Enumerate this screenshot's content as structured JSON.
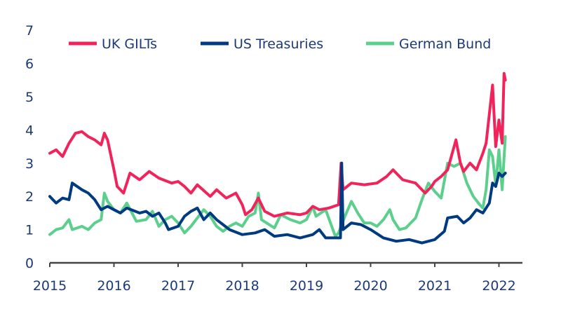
{
  "chart_data": {
    "type": "line",
    "title": "",
    "xlabel": "",
    "ylabel": "",
    "xlim": [
      2015,
      2022.25
    ],
    "ylim": [
      0,
      7
    ],
    "x_ticks": [
      "2015",
      "2016",
      "2017",
      "2018",
      "2019",
      "2020",
      "2021",
      "2022"
    ],
    "y_ticks": [
      "0",
      "1",
      "2",
      "3",
      "4",
      "5",
      "6",
      "7"
    ],
    "grid": false,
    "legend_position": "top",
    "series": [
      {
        "name": "UK GILTs",
        "color": "#f0245a",
        "x": [
          2015.0,
          2015.1,
          2015.2,
          2015.3,
          2015.4,
          2015.5,
          2015.6,
          2015.7,
          2015.8,
          2015.85,
          2015.9,
          2016.0,
          2016.05,
          2016.15,
          2016.25,
          2016.4,
          2016.55,
          2016.7,
          2016.9,
          2017.0,
          2017.1,
          2017.2,
          2017.3,
          2017.5,
          2017.6,
          2017.75,
          2017.9,
          2018.0,
          2018.05,
          2018.15,
          2018.25,
          2018.35,
          2018.5,
          2018.7,
          2018.9,
          2019.0,
          2019.1,
          2019.2,
          2019.35,
          2019.5,
          2019.54,
          2019.57,
          2019.7,
          2019.9,
          2020.1,
          2020.25,
          2020.35,
          2020.5,
          2020.7,
          2020.85,
          2020.95,
          2021.0,
          2021.1,
          2021.2,
          2021.33,
          2021.4,
          2021.45,
          2021.55,
          2021.65,
          2021.75,
          2021.8,
          2021.9,
          2021.95,
          2022.0,
          2022.05,
          2022.08,
          2022.1
        ],
        "y": [
          3.3,
          3.4,
          3.2,
          3.6,
          3.9,
          3.95,
          3.8,
          3.7,
          3.55,
          3.9,
          3.7,
          2.8,
          2.3,
          2.1,
          2.7,
          2.5,
          2.75,
          2.55,
          2.4,
          2.45,
          2.3,
          2.1,
          2.35,
          2.0,
          2.2,
          1.95,
          2.1,
          1.75,
          1.45,
          1.6,
          1.95,
          1.55,
          1.4,
          1.5,
          1.45,
          1.5,
          1.7,
          1.6,
          1.65,
          1.75,
          3.0,
          2.2,
          2.4,
          2.35,
          2.4,
          2.6,
          2.8,
          2.5,
          2.4,
          2.1,
          2.3,
          2.45,
          2.6,
          2.8,
          3.7,
          3.0,
          2.75,
          3.0,
          2.8,
          3.3,
          3.6,
          5.35,
          3.5,
          4.3,
          3.6,
          5.7,
          5.5
        ]
      },
      {
        "name": "US Treasuries",
        "color": "#003a80",
        "x": [
          2015.0,
          2015.1,
          2015.2,
          2015.3,
          2015.35,
          2015.5,
          2015.6,
          2015.7,
          2015.8,
          2015.9,
          2016.0,
          2016.1,
          2016.2,
          2016.4,
          2016.5,
          2016.6,
          2016.7,
          2016.8,
          2016.85,
          2017.0,
          2017.1,
          2017.2,
          2017.3,
          2017.4,
          2017.5,
          2017.6,
          2017.7,
          2017.8,
          2018.0,
          2018.2,
          2018.35,
          2018.5,
          2018.7,
          2018.9,
          2019.0,
          2019.1,
          2019.2,
          2019.3,
          2019.45,
          2019.53,
          2019.55,
          2019.57,
          2019.7,
          2019.85,
          2020.0,
          2020.2,
          2020.4,
          2020.6,
          2020.8,
          2020.9,
          2021.0,
          2021.15,
          2021.2,
          2021.35,
          2021.45,
          2021.55,
          2021.65,
          2021.75,
          2021.8,
          2021.85,
          2021.9,
          2021.95,
          2022.0,
          2022.05,
          2022.1
        ],
        "y": [
          2.0,
          1.8,
          1.95,
          1.9,
          2.4,
          2.2,
          2.1,
          1.9,
          1.6,
          1.7,
          1.6,
          1.5,
          1.65,
          1.5,
          1.55,
          1.4,
          1.5,
          1.2,
          1.0,
          1.1,
          1.4,
          1.55,
          1.65,
          1.3,
          1.5,
          1.3,
          1.15,
          1.0,
          0.85,
          0.9,
          1.0,
          0.8,
          0.85,
          0.75,
          0.8,
          0.85,
          1.0,
          0.75,
          0.75,
          0.75,
          3.0,
          1.0,
          1.2,
          1.15,
          1.0,
          0.75,
          0.65,
          0.7,
          0.6,
          0.65,
          0.7,
          0.95,
          1.35,
          1.4,
          1.2,
          1.35,
          1.6,
          1.5,
          1.65,
          1.8,
          2.4,
          2.3,
          2.7,
          2.6,
          2.7
        ]
      },
      {
        "name": "German Bund",
        "color": "#5ccf8d",
        "x": [
          2015.0,
          2015.1,
          2015.2,
          2015.3,
          2015.35,
          2015.5,
          2015.6,
          2015.7,
          2015.8,
          2015.85,
          2015.9,
          2016.0,
          2016.1,
          2016.2,
          2016.35,
          2016.5,
          2016.6,
          2016.7,
          2016.8,
          2016.9,
          2017.0,
          2017.1,
          2017.2,
          2017.3,
          2017.4,
          2017.5,
          2017.6,
          2017.7,
          2017.8,
          2017.9,
          2018.0,
          2018.1,
          2018.2,
          2018.25,
          2018.3,
          2018.5,
          2018.6,
          2018.75,
          2018.9,
          2019.0,
          2019.1,
          2019.15,
          2019.3,
          2019.45,
          2019.5,
          2019.6,
          2019.7,
          2019.8,
          2019.9,
          2020.0,
          2020.1,
          2020.2,
          2020.3,
          2020.35,
          2020.45,
          2020.55,
          2020.7,
          2020.8,
          2020.9,
          2021.0,
          2021.1,
          2021.2,
          2021.3,
          2021.4,
          2021.5,
          2021.6,
          2021.7,
          2021.75,
          2021.8,
          2021.85,
          2021.9,
          2021.95,
          2022.0,
          2022.05,
          2022.1
        ],
        "y": [
          0.85,
          1.0,
          1.05,
          1.3,
          1.0,
          1.1,
          1.0,
          1.2,
          1.3,
          2.1,
          1.85,
          1.6,
          1.5,
          1.8,
          1.25,
          1.3,
          1.55,
          1.1,
          1.3,
          1.4,
          1.2,
          0.9,
          1.1,
          1.35,
          1.6,
          1.4,
          1.1,
          0.95,
          1.1,
          1.2,
          1.1,
          1.4,
          1.5,
          2.1,
          1.3,
          1.05,
          1.45,
          1.3,
          1.2,
          1.3,
          1.7,
          1.4,
          1.6,
          0.8,
          0.9,
          1.4,
          1.85,
          1.5,
          1.2,
          1.2,
          1.1,
          1.3,
          1.6,
          1.3,
          1.0,
          1.05,
          1.35,
          1.9,
          2.4,
          2.15,
          1.95,
          3.0,
          2.9,
          3.0,
          2.4,
          2.0,
          1.75,
          1.65,
          2.2,
          3.4,
          3.2,
          2.35,
          3.4,
          2.2,
          3.8
        ]
      }
    ]
  }
}
